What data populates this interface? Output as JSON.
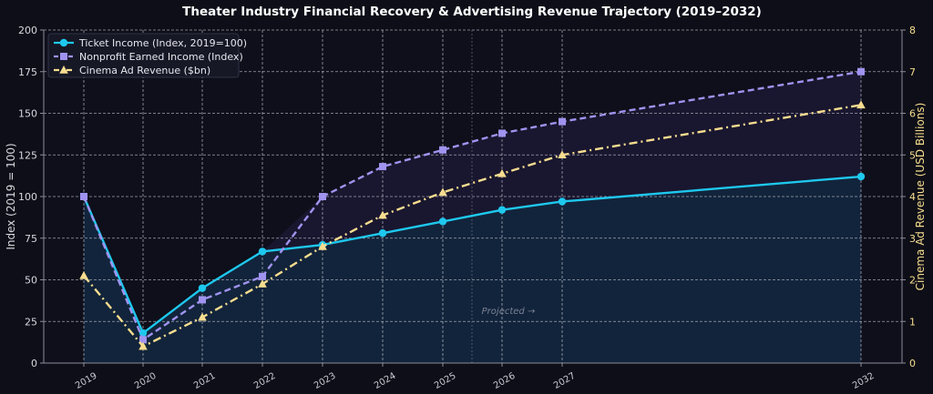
{
  "chart_data": {
    "type": "line",
    "title": "Theater Industry Financial Recovery & Advertising Revenue Trajectory (2019–2032)",
    "ylabel": "Index (2019 = 100)",
    "y2label": "Cinema Ad Revenue (USD Billions)",
    "ylim": [
      0,
      200
    ],
    "y2lim": [
      0,
      8
    ],
    "yticks": [
      0,
      25,
      50,
      75,
      100,
      125,
      150,
      175,
      200
    ],
    "y2ticks": [
      0,
      1,
      2,
      3,
      4,
      5,
      6,
      7,
      8
    ],
    "x": [
      2019,
      2020,
      2021,
      2022,
      2023,
      2024,
      2025,
      2026,
      2027,
      2032
    ],
    "xtick_labels": [
      "2019",
      "2020",
      "2021",
      "2022",
      "2023",
      "2024",
      "2025",
      "2026",
      "2027",
      "2032"
    ],
    "grid": true,
    "legend": "top-left",
    "annotation": "Projected →",
    "series": [
      {
        "name": "Ticket Income (Index, 2019=100)",
        "axis": "left",
        "color": "#1ec8ee",
        "marker": "circle",
        "style": "solid",
        "values": [
          100,
          18,
          45,
          67,
          71,
          78,
          85,
          92,
          97,
          112
        ]
      },
      {
        "name": "Nonprofit Earned Income (Index)",
        "axis": "left",
        "color": "#a093f0",
        "marker": "square",
        "style": "dashed",
        "values": [
          100,
          14,
          38,
          52,
          100,
          118,
          128,
          138,
          145,
          175
        ]
      },
      {
        "name": "Cinema Ad Revenue ($bn)",
        "axis": "right",
        "color": "#f7dd8f",
        "marker": "triangle",
        "style": "dashdot",
        "values": [
          2.1,
          0.4,
          1.1,
          1.9,
          2.8,
          3.55,
          4.1,
          4.55,
          5.0,
          6.2
        ]
      }
    ]
  }
}
